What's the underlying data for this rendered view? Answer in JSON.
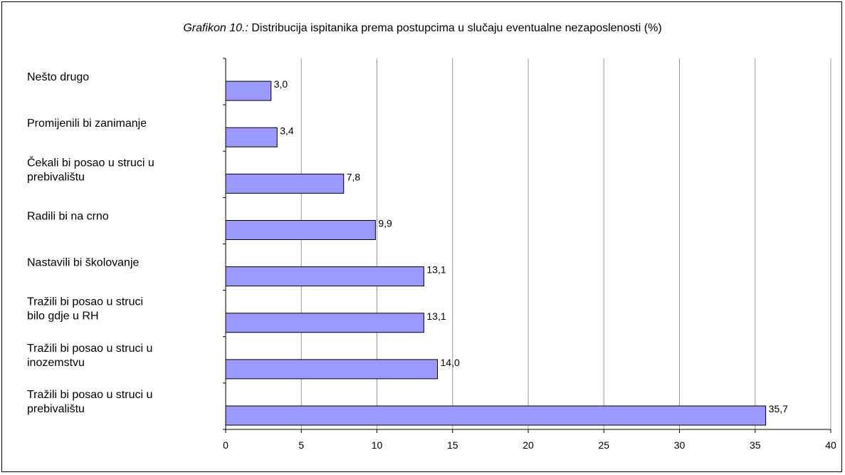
{
  "chart_data": {
    "type": "bar",
    "orientation": "horizontal",
    "title_prefix": "Grafikon 10.:",
    "title": "Distribucija ispitanika prema postupcima u slučaju eventualne nezaposlenosti (%)",
    "categories": [
      [
        "Nešto drugo"
      ],
      [
        "Promijenili bi zanimanje"
      ],
      [
        "Čekali bi posao u struci u",
        "prebivalištu"
      ],
      [
        "Radili bi na crno"
      ],
      [
        "Nastavili bi školovanje"
      ],
      [
        "Tražili bi posao u struci",
        "bilo gdje u RH"
      ],
      [
        "Tražili bi posao u struci u",
        "inozemstvu"
      ],
      [
        "Tražili bi posao u struci u",
        "prebivalištu"
      ]
    ],
    "values": [
      3.0,
      3.4,
      7.8,
      9.9,
      13.1,
      13.1,
      14.0,
      35.7
    ],
    "data_labels": [
      "3,0",
      "3,4",
      "7,8",
      "9,9",
      "13,1",
      "13,1",
      "14,0",
      "35,7"
    ],
    "xlim": [
      0,
      40
    ],
    "x_ticks": [
      0,
      5,
      10,
      15,
      20,
      25,
      30,
      35,
      40
    ],
    "grid": "vertical",
    "bar_color": "#9999ff",
    "xlabel": "",
    "ylabel": ""
  }
}
